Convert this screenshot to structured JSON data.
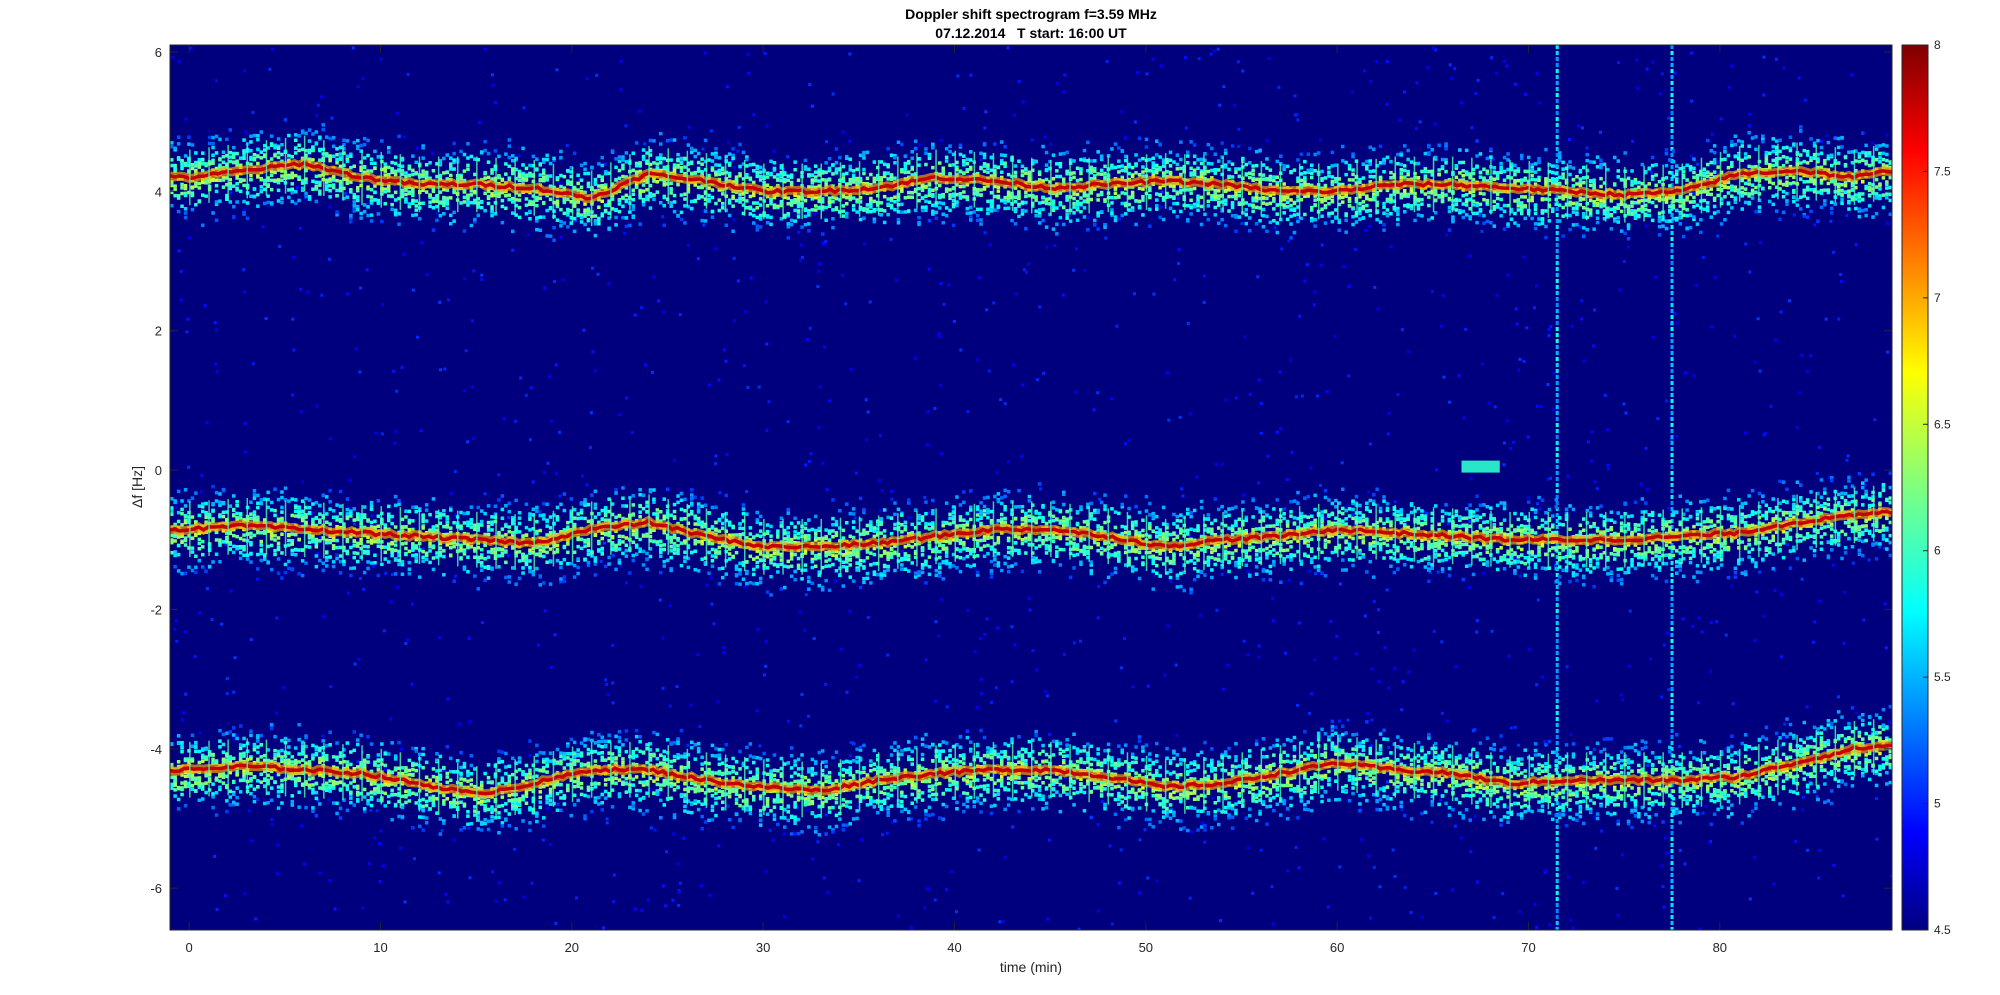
{
  "chart_data": {
    "type": "heatmap",
    "title": "Doppler shift spectrogram f=3.59 MHz",
    "subtitle": "07.12.2014   T start: 16:00 UT",
    "xlabel": "time (min)",
    "ylabel": "Δf [Hz]",
    "xlim": [
      -1,
      89
    ],
    "ylim": [
      -6.6,
      6.1
    ],
    "xticks": [
      0,
      10,
      20,
      30,
      40,
      50,
      60,
      70,
      80
    ],
    "yticks": [
      -6,
      -4,
      -2,
      0,
      2,
      4,
      6
    ],
    "colorbar": {
      "colormap": "jet",
      "clim": [
        4.5,
        8
      ],
      "ticks": [
        4.5,
        5,
        5.5,
        6,
        6.5,
        7,
        7.5,
        8
      ]
    },
    "grid": false,
    "traces": [
      {
        "t": [
          0,
          3,
          6,
          9,
          12,
          15,
          18,
          21,
          24,
          27,
          30,
          33,
          36,
          39,
          42,
          45,
          48,
          51,
          54,
          57,
          60,
          63,
          66,
          69,
          72,
          75,
          78,
          81,
          84,
          87,
          89
        ],
        "f": [
          4.2,
          4.3,
          4.4,
          4.2,
          4.1,
          4.1,
          4.05,
          3.9,
          4.25,
          4.15,
          4.0,
          4.0,
          4.05,
          4.2,
          4.15,
          4.05,
          4.1,
          4.15,
          4.1,
          4.0,
          4.0,
          4.1,
          4.1,
          4.05,
          4.0,
          3.95,
          4.0,
          4.25,
          4.3,
          4.2,
          4.3
        ]
      },
      {
        "t": [
          0,
          3,
          6,
          9,
          12,
          15,
          18,
          21,
          24,
          27,
          30,
          33,
          36,
          39,
          42,
          45,
          48,
          51,
          54,
          57,
          60,
          63,
          66,
          69,
          72,
          75,
          78,
          81,
          84,
          87,
          89
        ],
        "f": [
          -0.85,
          -0.8,
          -0.85,
          -0.9,
          -0.95,
          -1.0,
          -1.05,
          -0.85,
          -0.75,
          -0.95,
          -1.1,
          -1.1,
          -1.05,
          -0.95,
          -0.85,
          -0.85,
          -0.95,
          -1.1,
          -1.0,
          -0.95,
          -0.85,
          -0.9,
          -0.95,
          -1.0,
          -1.0,
          -1.0,
          -0.95,
          -0.9,
          -0.75,
          -0.65,
          -0.6
        ]
      },
      {
        "t": [
          0,
          3,
          6,
          9,
          12,
          15,
          18,
          21,
          24,
          27,
          30,
          33,
          36,
          39,
          42,
          45,
          48,
          51,
          54,
          57,
          60,
          63,
          66,
          69,
          72,
          75,
          78,
          81,
          84,
          87,
          89
        ],
        "f": [
          -4.3,
          -4.25,
          -4.3,
          -4.35,
          -4.5,
          -4.65,
          -4.5,
          -4.3,
          -4.3,
          -4.45,
          -4.55,
          -4.6,
          -4.45,
          -4.35,
          -4.3,
          -4.3,
          -4.4,
          -4.55,
          -4.5,
          -4.35,
          -4.2,
          -4.3,
          -4.35,
          -4.5,
          -4.45,
          -4.45,
          -4.45,
          -4.4,
          -4.2,
          -4.0,
          -3.95
        ]
      }
    ],
    "vertical_streaks": [
      71.5,
      77.5
    ],
    "horizontal_interference": [
      {
        "t": [
          66.5,
          68.5
        ],
        "f": 0.05
      }
    ]
  }
}
